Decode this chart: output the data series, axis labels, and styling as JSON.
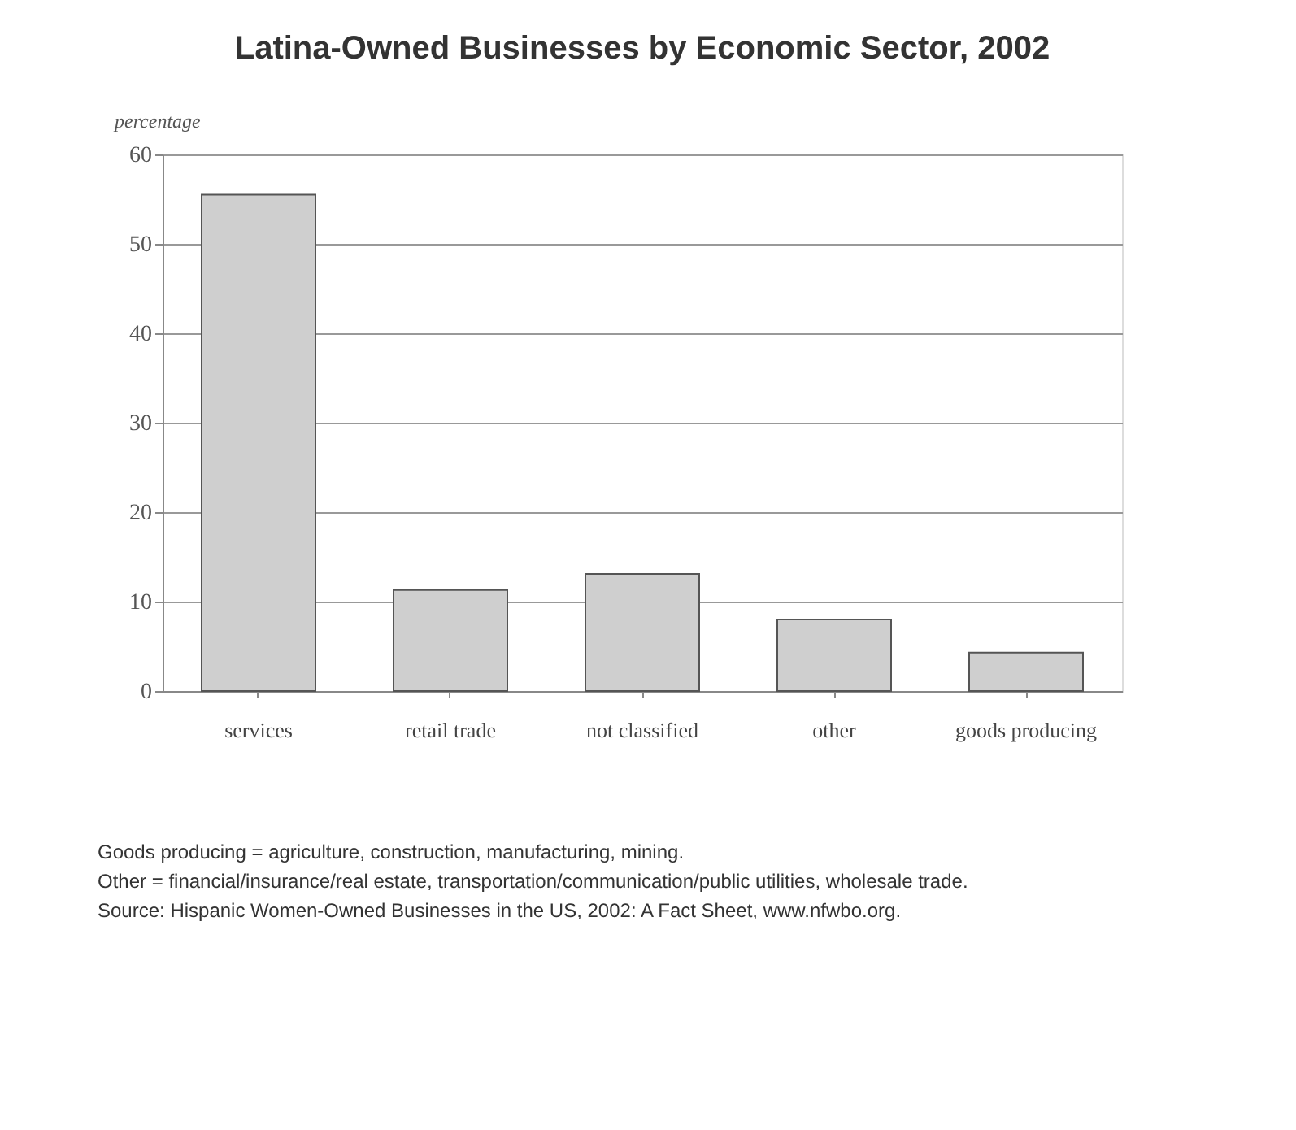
{
  "chart_data": {
    "type": "bar",
    "title": "Latina-Owned Businesses by Economic Sector, 2002",
    "ylabel": "percentage",
    "categories": [
      "services",
      "retail trade",
      "not classified",
      "other",
      "goods producing"
    ],
    "values": [
      55.5,
      11.3,
      13.1,
      8,
      4.3
    ],
    "color": "#cfcfcf",
    "ylim": [
      0,
      60
    ],
    "yticks": [
      0,
      10,
      20,
      30,
      40,
      50,
      60
    ],
    "grid": "y",
    "annotations": [
      "Goods producing = agriculture, construction, manufacturing, mining.",
      "Other = financial/insurance/real estate, transportation/communication/public utilities, wholesale trade.",
      "Source: Hispanic Women-Owned Businesses in the US, 2002: A Fact Sheet, www.nfwbo.org."
    ]
  }
}
